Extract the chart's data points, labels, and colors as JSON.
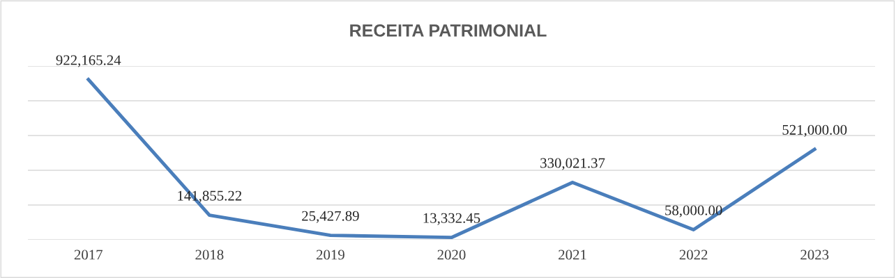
{
  "chart_data": {
    "type": "line",
    "title": "RECEITA PATRIMONIAL",
    "categories": [
      "2017",
      "2018",
      "2019",
      "2020",
      "2021",
      "2022",
      "2023"
    ],
    "values": [
      922165.24,
      141855.22,
      25427.89,
      13332.45,
      330021.37,
      58000.0,
      521000.0
    ],
    "value_labels": [
      "922,165.24",
      "141,855.22",
      "25,427.89",
      "13,332.45",
      "330,021.37",
      "58,000.00",
      "521,000.00"
    ],
    "color": "#4a7ebb",
    "ylim": [
      0,
      1000000
    ],
    "yticks": [
      {
        "value": 0,
        "label": null
      },
      {
        "value": 200000,
        "label": null
      },
      {
        "value": 400000,
        "label": null
      },
      {
        "value": 600000,
        "label": null
      },
      {
        "value": 800000,
        "label": null
      },
      {
        "value": 1000000,
        "label": null
      }
    ],
    "grid": "y",
    "tick_labels": "x",
    "marker": "none",
    "line_style": "solid",
    "legend": false
  }
}
